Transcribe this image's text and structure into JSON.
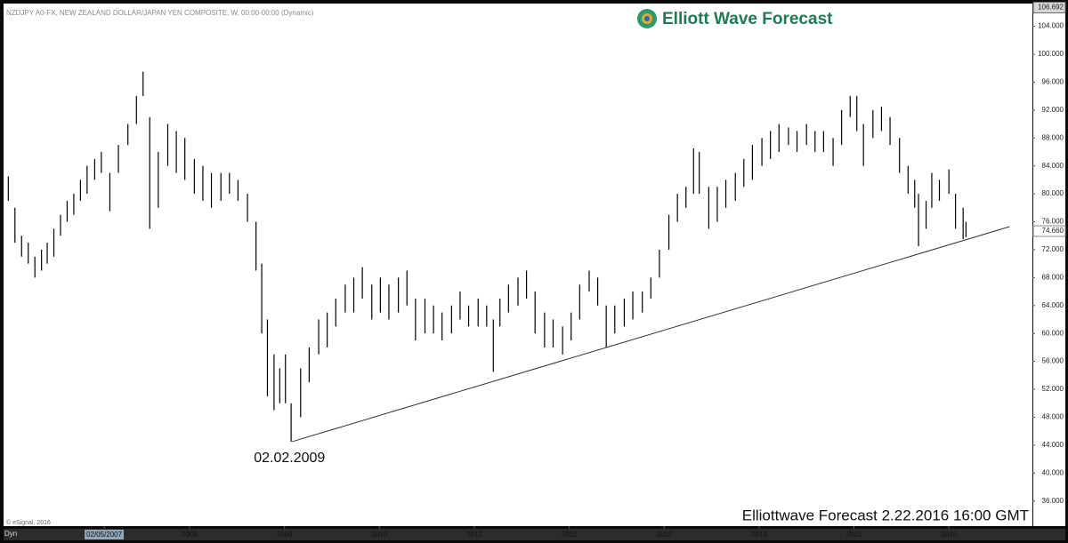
{
  "header": "NZDJPY A0-FX, NEW ZEALAND DOLLAR/JAPAN YEN COMPOSITE, W, 00:00-00:00 (Dynamic)",
  "logo": "Elliott Wave Forecast",
  "footer": "Elliottwave Forecast  2.22.2016 16:00 GMT",
  "copyright": "© eSignal, 2016",
  "corner_label": "Dyn",
  "chart_data": {
    "type": "ohlc",
    "color": "#000000",
    "xlim": [
      2006.04,
      2016.88
    ],
    "ylim": [
      32.4,
      107
    ],
    "yticks": [
      {
        "value": 36,
        "label": "36.000"
      },
      {
        "value": 40,
        "label": "40.000"
      },
      {
        "value": 44,
        "label": "44.000"
      },
      {
        "value": 48,
        "label": "48.000"
      },
      {
        "value": 52,
        "label": "52.000"
      },
      {
        "value": 56,
        "label": "56.000"
      },
      {
        "value": 60,
        "label": "60.000"
      },
      {
        "value": 64,
        "label": "64.000"
      },
      {
        "value": 68,
        "label": "68.000"
      },
      {
        "value": 72,
        "label": "72.000"
      },
      {
        "value": 76,
        "label": "76.000"
      },
      {
        "value": 80,
        "label": "80.000"
      },
      {
        "value": 84,
        "label": "84.000"
      },
      {
        "value": 88,
        "label": "88.000"
      },
      {
        "value": 92,
        "label": "92.000"
      },
      {
        "value": 96,
        "label": "96.000"
      },
      {
        "value": 100,
        "label": "100.000"
      },
      {
        "value": 104,
        "label": "104.000"
      }
    ],
    "xticks": [
      {
        "value": 2007.1,
        "label": "02/05/2007"
      },
      2008,
      2009,
      2010,
      2011,
      2012,
      2013,
      2014,
      2015,
      2016
    ],
    "last_price": {
      "value": 74.66,
      "label": "74.660"
    },
    "top_value": {
      "value": 106.692,
      "label": "106.692"
    },
    "annotation": {
      "text": "02.02.2009",
      "x": 2009.09,
      "y": 44.5
    },
    "trendline": {
      "x": [
        2009.08,
        2016.64
      ],
      "y": [
        44.5,
        75.3
      ],
      "color": "#333333"
    },
    "x": [
      2006.09,
      2006.16,
      2006.23,
      2006.3,
      2006.37,
      2006.44,
      2006.5,
      2006.57,
      2006.64,
      2006.71,
      2006.78,
      2006.85,
      2006.92,
      2007.0,
      2007.07,
      2007.16,
      2007.25,
      2007.35,
      2007.44,
      2007.51,
      2007.58,
      2007.67,
      2007.77,
      2007.86,
      2007.95,
      2008.05,
      2008.14,
      2008.23,
      2008.33,
      2008.42,
      2008.51,
      2008.61,
      2008.7,
      2008.76,
      2008.82,
      2008.89,
      2008.95,
      2009.01,
      2009.07,
      2009.17,
      2009.26,
      2009.36,
      2009.45,
      2009.54,
      2009.64,
      2009.73,
      2009.82,
      2009.92,
      2010.01,
      2010.1,
      2010.2,
      2010.29,
      2010.38,
      2010.48,
      2010.57,
      2010.66,
      2010.76,
      2010.85,
      2010.94,
      2011.04,
      2011.13,
      2011.2,
      2011.27,
      2011.36,
      2011.46,
      2011.55,
      2011.64,
      2011.74,
      2011.83,
      2011.93,
      2012.02,
      2012.11,
      2012.21,
      2012.3,
      2012.39,
      2012.48,
      2012.58,
      2012.67,
      2012.77,
      2012.86,
      2012.95,
      2013.05,
      2013.14,
      2013.23,
      2013.31,
      2013.37,
      2013.47,
      2013.56,
      2013.65,
      2013.75,
      2013.84,
      2013.93,
      2014.03,
      2014.12,
      2014.21,
      2014.31,
      2014.4,
      2014.5,
      2014.59,
      2014.68,
      2014.78,
      2014.87,
      2014.96,
      2015.03,
      2015.1,
      2015.2,
      2015.29,
      2015.38,
      2015.48,
      2015.57,
      2015.64,
      2015.68,
      2015.76,
      2015.82,
      2015.9,
      2016.0,
      2016.07,
      2016.15,
      2016.18
    ],
    "high": [
      82.5,
      78,
      74,
      73,
      71,
      72,
      73,
      75,
      77,
      79,
      80,
      82,
      84,
      85,
      86,
      83,
      87,
      90,
      94,
      97.5,
      91,
      86,
      90,
      89,
      88,
      85,
      84,
      83,
      83,
      83,
      82,
      80,
      76,
      70,
      62,
      57,
      55,
      57,
      50,
      55,
      58,
      62,
      63,
      65,
      67,
      68,
      69.5,
      67,
      68,
      67,
      68,
      69,
      65,
      65,
      64,
      63,
      64,
      66,
      64,
      65,
      64,
      62,
      65,
      67,
      68,
      69,
      66,
      63,
      62,
      61,
      63,
      67,
      69,
      68,
      64,
      64,
      65,
      66,
      66,
      68,
      72,
      77,
      80,
      81,
      86.5,
      86,
      81,
      81,
      82,
      83,
      85,
      87,
      88,
      89,
      90,
      89.5,
      89,
      90,
      89,
      89,
      88,
      92,
      94,
      94,
      90,
      92,
      92.5,
      91,
      88,
      84,
      82,
      80,
      79,
      83,
      82,
      83.5,
      80,
      78,
      76
    ],
    "low": [
      79,
      73,
      71,
      70,
      68,
      69,
      70,
      71,
      74,
      76,
      77,
      79,
      80,
      82,
      83,
      77.5,
      83,
      87,
      90,
      94,
      75,
      78,
      84,
      83,
      82,
      80,
      79,
      78,
      79,
      80,
      79,
      76,
      69,
      60,
      51,
      49,
      50,
      50,
      44.5,
      48,
      53,
      57,
      58,
      61,
      63,
      63,
      65,
      62,
      63,
      62,
      63,
      64,
      59,
      60,
      60,
      59,
      60,
      62,
      61,
      61,
      61,
      54.5,
      61,
      63,
      64,
      65,
      60,
      58,
      58,
      57,
      59,
      62,
      66,
      64,
      58,
      60,
      61,
      62,
      63,
      65,
      68,
      72,
      76,
      78,
      80,
      80,
      75,
      76,
      78,
      79,
      81,
      82,
      84,
      85,
      86,
      87,
      86,
      87,
      86,
      86,
      84,
      87,
      91,
      89,
      84,
      88,
      89,
      87,
      83,
      80,
      78,
      72.5,
      75,
      78,
      79,
      80,
      75,
      73.5,
      73.8
    ]
  }
}
